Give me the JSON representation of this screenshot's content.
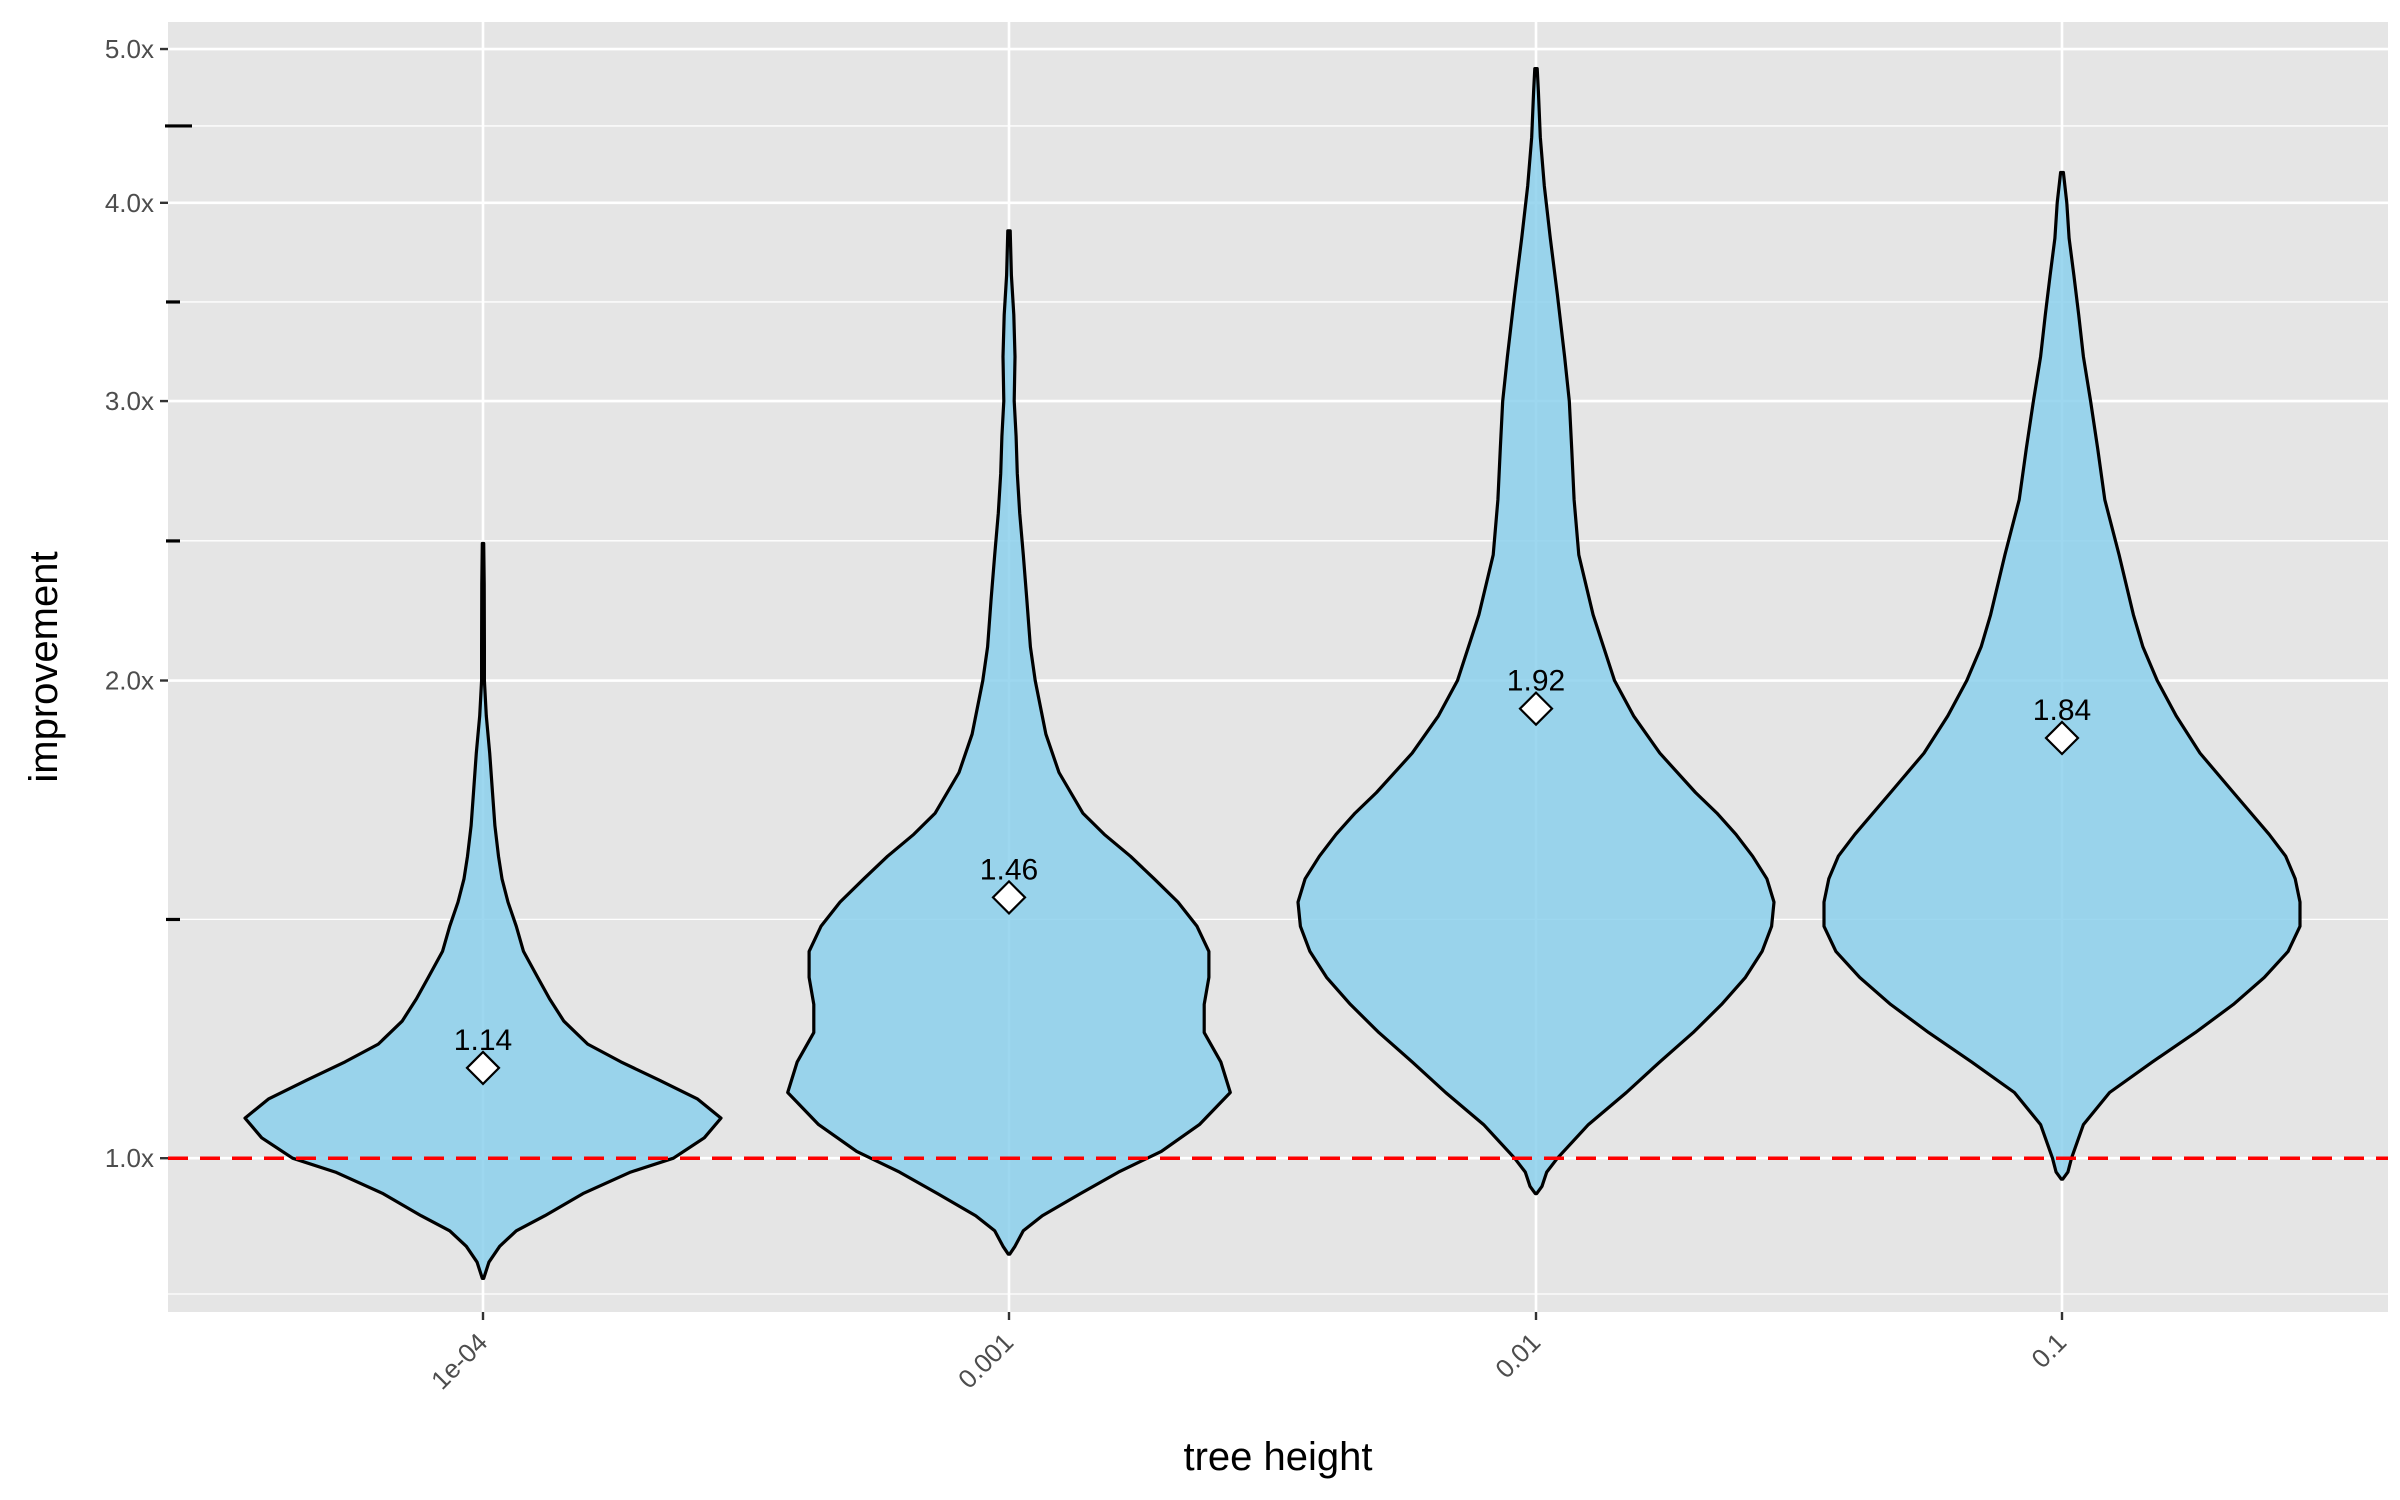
{
  "chart_data": {
    "type": "violin",
    "title": "",
    "xlabel": "tree height",
    "ylabel": "improvement",
    "y_scale": "log",
    "ylim": [
      0.8,
      5.2
    ],
    "y_ticks": [
      {
        "value": 1.0,
        "label": "1.0x"
      },
      {
        "value": 2.0,
        "label": "2.0x"
      },
      {
        "value": 3.0,
        "label": "3.0x"
      },
      {
        "value": 4.0,
        "label": "4.0x"
      },
      {
        "value": 5.0,
        "label": "5.0x"
      }
    ],
    "y_minor_ticks": [
      1.414,
      2.449,
      3.464,
      4.472
    ],
    "reference_line": {
      "value": 1.0,
      "color": "#ff0000",
      "style": "dashed"
    },
    "fill_color": "#87CEEB",
    "categories": [
      "1e-04",
      "0.001",
      "0.01",
      "0.1"
    ],
    "means": [
      1.14,
      1.46,
      1.92,
      1.84
    ],
    "mean_labels": [
      "1.14",
      "1.46",
      "1.92",
      "1.84"
    ],
    "violins": [
      {
        "category": "1e-04",
        "density": [
          [
            0.84,
            0.0
          ],
          [
            0.86,
            0.025
          ],
          [
            0.88,
            0.07
          ],
          [
            0.9,
            0.14
          ],
          [
            0.92,
            0.26
          ],
          [
            0.95,
            0.42
          ],
          [
            0.98,
            0.62
          ],
          [
            1.0,
            0.8
          ],
          [
            1.03,
            0.93
          ],
          [
            1.06,
            1.0
          ],
          [
            1.09,
            0.9
          ],
          [
            1.12,
            0.74
          ],
          [
            1.15,
            0.58
          ],
          [
            1.18,
            0.44
          ],
          [
            1.22,
            0.34
          ],
          [
            1.26,
            0.28
          ],
          [
            1.3,
            0.23
          ],
          [
            1.35,
            0.17
          ],
          [
            1.4,
            0.14
          ],
          [
            1.45,
            0.105
          ],
          [
            1.5,
            0.08
          ],
          [
            1.55,
            0.065
          ],
          [
            1.62,
            0.05
          ],
          [
            1.7,
            0.04
          ],
          [
            1.8,
            0.028
          ],
          [
            1.9,
            0.014
          ],
          [
            2.0,
            0.006
          ],
          [
            2.1,
            0.006
          ],
          [
            2.3,
            0.005
          ],
          [
            2.44,
            0.003
          ]
        ]
      },
      {
        "category": "0.001",
        "density": [
          [
            0.87,
            0.0
          ],
          [
            0.88,
            0.025
          ],
          [
            0.9,
            0.06
          ],
          [
            0.92,
            0.14
          ],
          [
            0.95,
            0.3
          ],
          [
            0.98,
            0.46
          ],
          [
            1.01,
            0.64
          ],
          [
            1.05,
            0.8
          ],
          [
            1.1,
            0.93
          ],
          [
            1.15,
            0.89
          ],
          [
            1.2,
            0.82
          ],
          [
            1.25,
            0.82
          ],
          [
            1.3,
            0.84
          ],
          [
            1.35,
            0.84
          ],
          [
            1.4,
            0.79
          ],
          [
            1.45,
            0.71
          ],
          [
            1.5,
            0.61
          ],
          [
            1.55,
            0.51
          ],
          [
            1.6,
            0.4
          ],
          [
            1.65,
            0.31
          ],
          [
            1.75,
            0.21
          ],
          [
            1.85,
            0.155
          ],
          [
            2.0,
            0.11
          ],
          [
            2.1,
            0.09
          ],
          [
            2.25,
            0.075
          ],
          [
            2.4,
            0.06
          ],
          [
            2.55,
            0.045
          ],
          [
            2.7,
            0.035
          ],
          [
            2.85,
            0.03
          ],
          [
            3.0,
            0.022
          ],
          [
            3.2,
            0.025
          ],
          [
            3.4,
            0.02
          ],
          [
            3.6,
            0.01
          ],
          [
            3.84,
            0.005
          ]
        ]
      },
      {
        "category": "0.01",
        "density": [
          [
            0.95,
            0.0
          ],
          [
            0.96,
            0.025
          ],
          [
            0.98,
            0.045
          ],
          [
            1.0,
            0.09
          ],
          [
            1.05,
            0.22
          ],
          [
            1.1,
            0.38
          ],
          [
            1.15,
            0.52
          ],
          [
            1.2,
            0.66
          ],
          [
            1.25,
            0.78
          ],
          [
            1.3,
            0.88
          ],
          [
            1.35,
            0.95
          ],
          [
            1.4,
            0.99
          ],
          [
            1.45,
            1.0
          ],
          [
            1.5,
            0.97
          ],
          [
            1.55,
            0.91
          ],
          [
            1.6,
            0.84
          ],
          [
            1.65,
            0.76
          ],
          [
            1.7,
            0.67
          ],
          [
            1.8,
            0.52
          ],
          [
            1.9,
            0.41
          ],
          [
            2.0,
            0.33
          ],
          [
            2.2,
            0.24
          ],
          [
            2.4,
            0.18
          ],
          [
            2.6,
            0.16
          ],
          [
            2.8,
            0.15
          ],
          [
            3.0,
            0.14
          ],
          [
            3.2,
            0.12
          ],
          [
            3.5,
            0.09
          ],
          [
            3.8,
            0.06
          ],
          [
            4.1,
            0.035
          ],
          [
            4.4,
            0.018
          ],
          [
            4.7,
            0.01
          ],
          [
            4.86,
            0.005
          ]
        ]
      },
      {
        "category": "0.1",
        "density": [
          [
            0.97,
            0.0
          ],
          [
            0.98,
            0.025
          ],
          [
            1.0,
            0.04
          ],
          [
            1.05,
            0.09
          ],
          [
            1.1,
            0.2
          ],
          [
            1.15,
            0.38
          ],
          [
            1.2,
            0.56
          ],
          [
            1.25,
            0.72
          ],
          [
            1.3,
            0.85
          ],
          [
            1.35,
            0.95
          ],
          [
            1.4,
            1.0
          ],
          [
            1.45,
            1.0
          ],
          [
            1.5,
            0.98
          ],
          [
            1.55,
            0.94
          ],
          [
            1.6,
            0.87
          ],
          [
            1.7,
            0.72
          ],
          [
            1.8,
            0.58
          ],
          [
            1.9,
            0.48
          ],
          [
            2.0,
            0.4
          ],
          [
            2.1,
            0.34
          ],
          [
            2.2,
            0.3
          ],
          [
            2.4,
            0.24
          ],
          [
            2.6,
            0.18
          ],
          [
            2.8,
            0.15
          ],
          [
            3.0,
            0.12
          ],
          [
            3.2,
            0.09
          ],
          [
            3.4,
            0.07
          ],
          [
            3.6,
            0.05
          ],
          [
            3.8,
            0.03
          ],
          [
            4.0,
            0.02
          ],
          [
            4.18,
            0.006
          ]
        ]
      }
    ]
  }
}
